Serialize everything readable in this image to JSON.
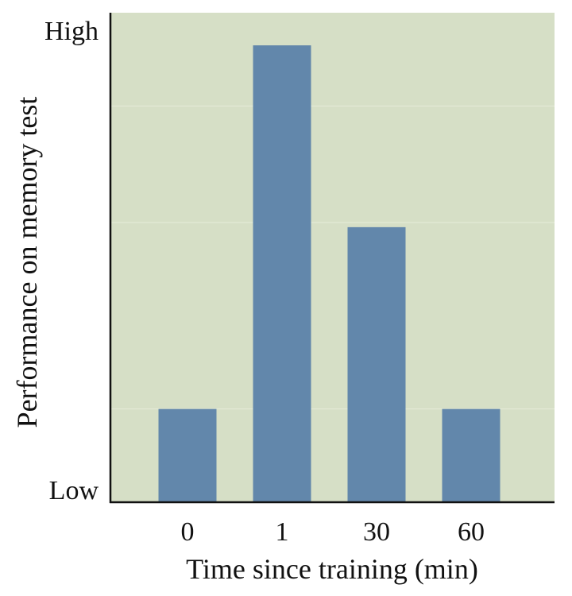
{
  "chart_data": {
    "type": "bar",
    "title": "",
    "xlabel": "Time since training (min)",
    "ylabel": "Performance on memory test",
    "categories": [
      "0",
      "1",
      "30",
      "60"
    ],
    "values": [
      0.2,
      0.98,
      0.59,
      0.2
    ],
    "ylim": [
      0,
      1.05
    ],
    "y_tick_labels": [
      {
        "value": 0,
        "label": "Low"
      },
      {
        "value": 1.05,
        "label": "High"
      }
    ],
    "grid": true,
    "colors": {
      "plot_background": "#d6dfc6",
      "bar": "#6287ab",
      "axis": "#111111",
      "grid": "#e6ecd9"
    }
  }
}
